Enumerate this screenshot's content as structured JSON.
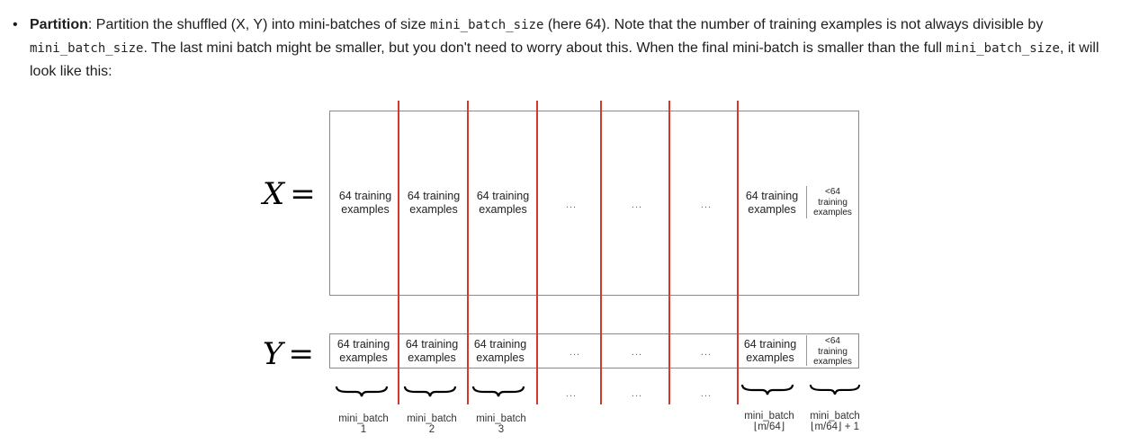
{
  "bullet": {
    "symbol": "•",
    "term": "Partition",
    "t1": ": Partition the shuffled (X, Y) into mini-batches of size ",
    "code1": "mini_batch_size",
    "t2": " (here 64). Note that the number of training examples is not always divisible by ",
    "code2": "mini_batch_size",
    "t3": ". The last mini batch might be smaller, but you don't need to worry about this. When the final mini-batch is smaller than the full ",
    "code3": "mini_batch_size",
    "t4": ", it will look like this:"
  },
  "figure": {
    "x_label": "X",
    "y_label": "Y",
    "equals": "=",
    "cell_line1": "64 training",
    "cell_line2": "examples",
    "last_line1": "<64",
    "last_line2": "training",
    "last_line3": "examples",
    "ellipsis": "...",
    "mb_label_1": "mini_batch",
    "mb_num_1": "1",
    "mb_label_2": "mini_batch",
    "mb_num_2": "2",
    "mb_label_3": "mini_batch",
    "mb_num_3": "3",
    "mb_label_n": "mini_batch",
    "mb_num_n": "⌊m/64⌋",
    "mb_label_last": "mini_batch",
    "mb_num_last": "⌊m/64⌋ + 1",
    "divider_color": "#d13a2a"
  }
}
